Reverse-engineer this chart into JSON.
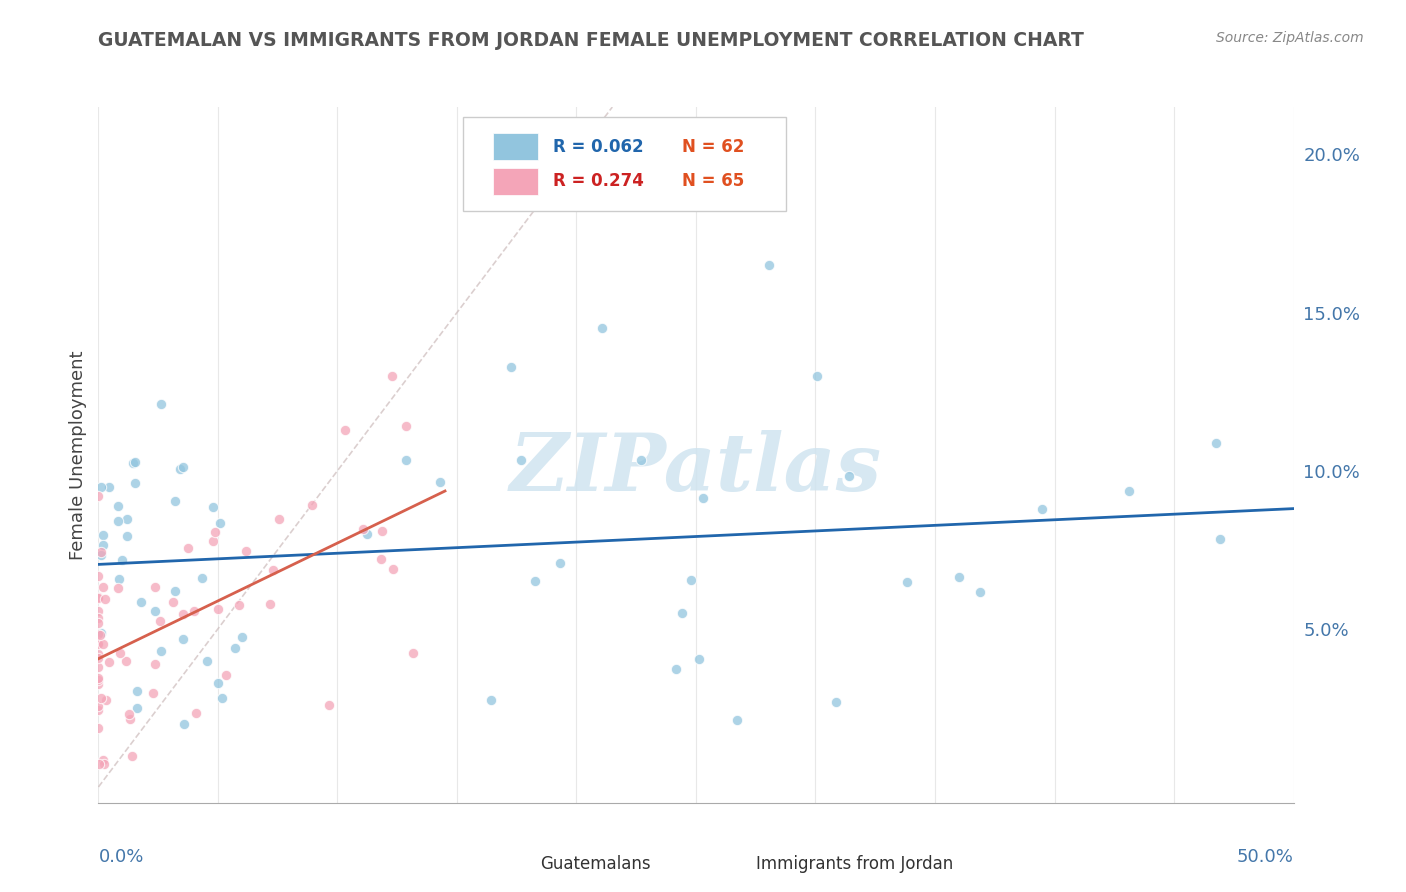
{
  "title": "GUATEMALAN VS IMMIGRANTS FROM JORDAN FEMALE UNEMPLOYMENT CORRELATION CHART",
  "source": "Source: ZipAtlas.com",
  "ylabel": "Female Unemployment",
  "right_yticks": [
    "20.0%",
    "15.0%",
    "10.0%",
    "5.0%"
  ],
  "right_ytick_vals": [
    0.2,
    0.15,
    0.1,
    0.05
  ],
  "xlim": [
    0.0,
    0.5
  ],
  "ylim": [
    -0.005,
    0.215
  ],
  "legend_blue_R": "R = 0.062",
  "legend_blue_N": "N = 62",
  "legend_pink_R": "R = 0.274",
  "legend_pink_N": "N = 65",
  "blue_color": "#92c5de",
  "pink_color": "#f4a5b8",
  "blue_line_color": "#2166ac",
  "pink_line_color": "#d6604d",
  "dashed_line_color": "#ccbbbb",
  "watermark_color": "#d0e4f0",
  "background_color": "#ffffff",
  "grid_color": "#e8e8e8",
  "title_color": "#555555",
  "source_color": "#888888",
  "right_tick_color": "#4477aa",
  "bottom_tick_color": "#4477aa"
}
